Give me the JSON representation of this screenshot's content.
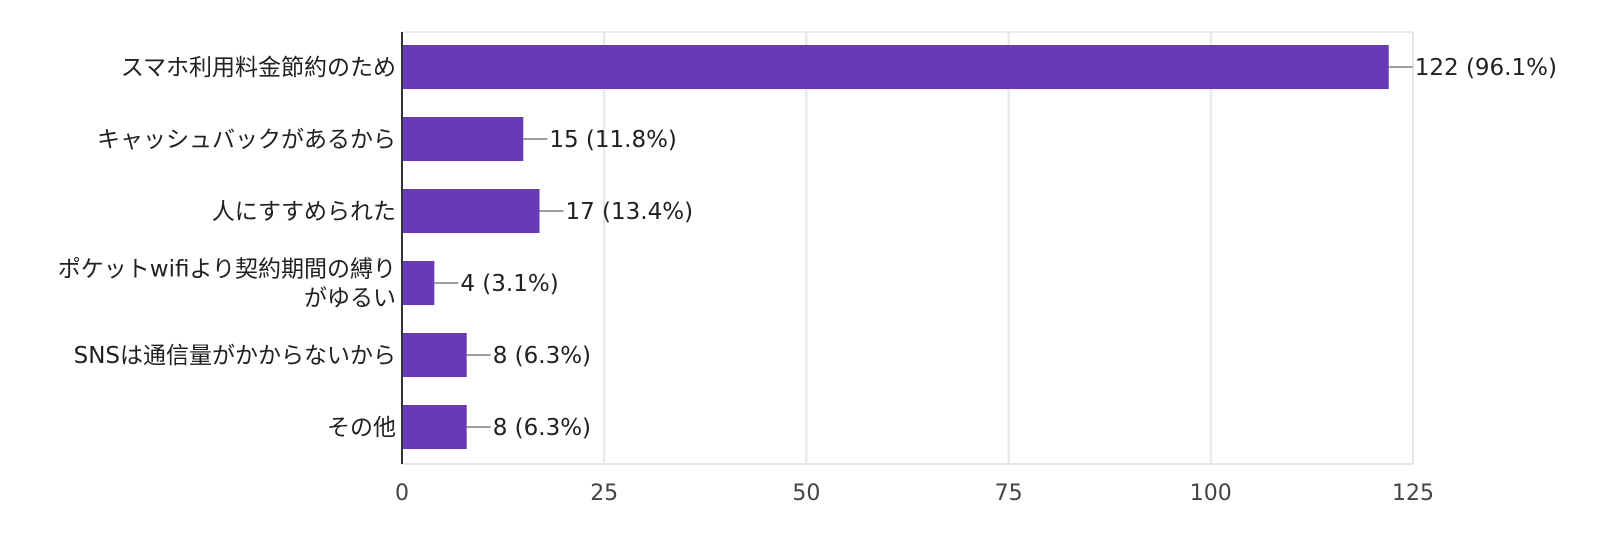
{
  "chart_data": {
    "type": "bar",
    "orientation": "horizontal",
    "categories": [
      [
        "スマホ利用料金節約のため"
      ],
      [
        "キャッシュバックがあるから"
      ],
      [
        "人にすすめられた"
      ],
      [
        "ポケットwifiより契約期間の縛り",
        "がゆるい"
      ],
      [
        "SNSは通信量がかからないから"
      ],
      [
        "その他"
      ]
    ],
    "values": [
      122,
      15,
      17,
      4,
      8,
      8
    ],
    "data_labels": [
      "122 (96.1%)",
      "15 (11.8%)",
      "17 (13.4%)",
      "4 (3.1%)",
      "8 (6.3%)",
      "8 (6.3%)"
    ],
    "xlim": [
      0,
      125
    ],
    "x_ticks": [
      0,
      25,
      50,
      75,
      100,
      125
    ],
    "grid": true,
    "colors": {
      "bar": "#673ab7",
      "leader": "#9e9e9e",
      "grid": "#e6e6e6",
      "axis": "#333333"
    }
  }
}
